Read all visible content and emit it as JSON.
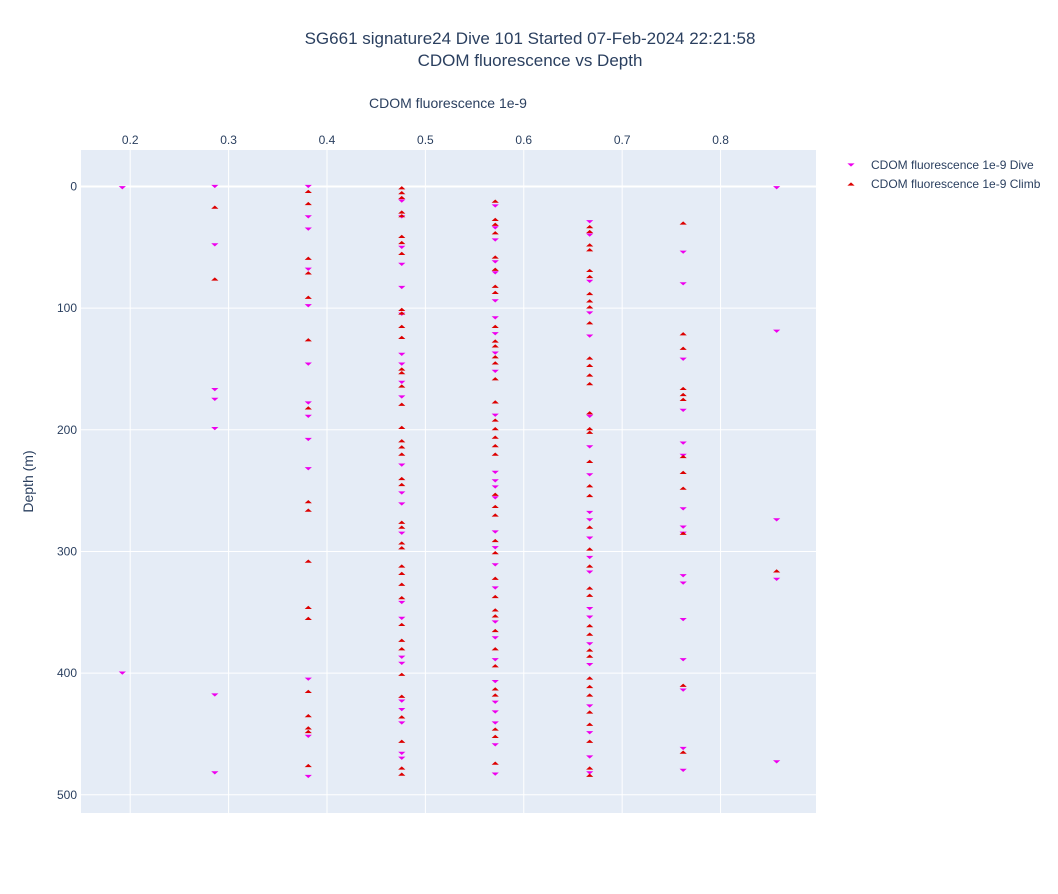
{
  "chart_data": {
    "type": "scatter",
    "title": "SG661 signature24 Dive 101 Started 07-Feb-2024 22:21:58",
    "subtitle": "CDOM fluorescence vs Depth",
    "xlabel": "CDOM fluorescence 1e-9",
    "ylabel": "Depth (m)",
    "x_axis_position": "top",
    "y_axis_reversed": true,
    "xlim": [
      0.15,
      0.897
    ],
    "ylim": [
      -30,
      515
    ],
    "x_ticks": [
      0.2,
      0.3,
      0.4,
      0.5,
      0.6,
      0.7,
      0.8
    ],
    "x_tick_labels": [
      "0.2",
      "0.3",
      "0.4",
      "0.5",
      "0.6",
      "0.7",
      "0.8"
    ],
    "y_ticks": [
      0,
      100,
      200,
      300,
      400,
      500
    ],
    "y_tick_labels": [
      "0",
      "100",
      "200",
      "300",
      "400",
      "500"
    ],
    "grid": true,
    "legend_position": "top-right",
    "series": [
      {
        "name": "CDOM fluorescence 1e-9 Dive",
        "marker": "triangle-down",
        "color": "#ee00ee",
        "points": [
          [
            0.192,
            1
          ],
          [
            0.192,
            400
          ],
          [
            0.286,
            0
          ],
          [
            0.286,
            48
          ],
          [
            0.286,
            167
          ],
          [
            0.286,
            175
          ],
          [
            0.286,
            199
          ],
          [
            0.286,
            418
          ],
          [
            0.286,
            482
          ],
          [
            0.381,
            0
          ],
          [
            0.381,
            25
          ],
          [
            0.381,
            35
          ],
          [
            0.381,
            68
          ],
          [
            0.381,
            98
          ],
          [
            0.381,
            146
          ],
          [
            0.381,
            178
          ],
          [
            0.381,
            189
          ],
          [
            0.381,
            208
          ],
          [
            0.381,
            232
          ],
          [
            0.381,
            405
          ],
          [
            0.381,
            452
          ],
          [
            0.381,
            485
          ],
          [
            0.476,
            12
          ],
          [
            0.476,
            25
          ],
          [
            0.476,
            50
          ],
          [
            0.476,
            64
          ],
          [
            0.476,
            83
          ],
          [
            0.476,
            105
          ],
          [
            0.476,
            138
          ],
          [
            0.476,
            146
          ],
          [
            0.476,
            161
          ],
          [
            0.476,
            173
          ],
          [
            0.476,
            229
          ],
          [
            0.476,
            252
          ],
          [
            0.476,
            261
          ],
          [
            0.476,
            285
          ],
          [
            0.476,
            342
          ],
          [
            0.476,
            355
          ],
          [
            0.476,
            387
          ],
          [
            0.476,
            392
          ],
          [
            0.476,
            423
          ],
          [
            0.476,
            430
          ],
          [
            0.476,
            441
          ],
          [
            0.476,
            466
          ],
          [
            0.476,
            470
          ],
          [
            0.571,
            16
          ],
          [
            0.571,
            34
          ],
          [
            0.571,
            44
          ],
          [
            0.571,
            62
          ],
          [
            0.571,
            71
          ],
          [
            0.571,
            94
          ],
          [
            0.571,
            108
          ],
          [
            0.571,
            121
          ],
          [
            0.571,
            137
          ],
          [
            0.571,
            152
          ],
          [
            0.571,
            188
          ],
          [
            0.571,
            235
          ],
          [
            0.571,
            242
          ],
          [
            0.571,
            247
          ],
          [
            0.571,
            256
          ],
          [
            0.571,
            284
          ],
          [
            0.571,
            297
          ],
          [
            0.571,
            311
          ],
          [
            0.571,
            330
          ],
          [
            0.571,
            358
          ],
          [
            0.571,
            371
          ],
          [
            0.571,
            389
          ],
          [
            0.571,
            407
          ],
          [
            0.571,
            424
          ],
          [
            0.571,
            432
          ],
          [
            0.571,
            441
          ],
          [
            0.571,
            459
          ],
          [
            0.571,
            483
          ],
          [
            0.667,
            29
          ],
          [
            0.667,
            40
          ],
          [
            0.667,
            78
          ],
          [
            0.667,
            104
          ],
          [
            0.667,
            123
          ],
          [
            0.667,
            189
          ],
          [
            0.667,
            214
          ],
          [
            0.667,
            237
          ],
          [
            0.667,
            268
          ],
          [
            0.667,
            274
          ],
          [
            0.667,
            289
          ],
          [
            0.667,
            305
          ],
          [
            0.667,
            317
          ],
          [
            0.667,
            347
          ],
          [
            0.667,
            354
          ],
          [
            0.667,
            376
          ],
          [
            0.667,
            393
          ],
          [
            0.667,
            427
          ],
          [
            0.667,
            449
          ],
          [
            0.667,
            469
          ],
          [
            0.667,
            482
          ],
          [
            0.762,
            54
          ],
          [
            0.762,
            80
          ],
          [
            0.762,
            142
          ],
          [
            0.762,
            184
          ],
          [
            0.762,
            211
          ],
          [
            0.762,
            221
          ],
          [
            0.762,
            265
          ],
          [
            0.762,
            280
          ],
          [
            0.762,
            285
          ],
          [
            0.762,
            320
          ],
          [
            0.762,
            326
          ],
          [
            0.762,
            356
          ],
          [
            0.762,
            389
          ],
          [
            0.762,
            414
          ],
          [
            0.762,
            462
          ],
          [
            0.762,
            480
          ],
          [
            0.857,
            1
          ],
          [
            0.857,
            119
          ],
          [
            0.857,
            274
          ],
          [
            0.857,
            323
          ],
          [
            0.857,
            473
          ]
        ]
      },
      {
        "name": "CDOM fluorescence 1e-9 Climb",
        "marker": "triangle-up",
        "color": "#dd0000",
        "points": [
          [
            0.286,
            17
          ],
          [
            0.286,
            76
          ],
          [
            0.381,
            4
          ],
          [
            0.381,
            14
          ],
          [
            0.381,
            59
          ],
          [
            0.381,
            71
          ],
          [
            0.381,
            91
          ],
          [
            0.381,
            126
          ],
          [
            0.381,
            182
          ],
          [
            0.381,
            259
          ],
          [
            0.381,
            266
          ],
          [
            0.381,
            308
          ],
          [
            0.381,
            346
          ],
          [
            0.381,
            355
          ],
          [
            0.381,
            415
          ],
          [
            0.381,
            435
          ],
          [
            0.381,
            445
          ],
          [
            0.381,
            448
          ],
          [
            0.381,
            476
          ],
          [
            0.476,
            1
          ],
          [
            0.476,
            5
          ],
          [
            0.476,
            9
          ],
          [
            0.476,
            21
          ],
          [
            0.476,
            24
          ],
          [
            0.476,
            41
          ],
          [
            0.476,
            46
          ],
          [
            0.476,
            55
          ],
          [
            0.476,
            101
          ],
          [
            0.476,
            104
          ],
          [
            0.476,
            115
          ],
          [
            0.476,
            124
          ],
          [
            0.476,
            150
          ],
          [
            0.476,
            153
          ],
          [
            0.476,
            164
          ],
          [
            0.476,
            179
          ],
          [
            0.476,
            198
          ],
          [
            0.476,
            209
          ],
          [
            0.476,
            214
          ],
          [
            0.476,
            220
          ],
          [
            0.476,
            240
          ],
          [
            0.476,
            245
          ],
          [
            0.476,
            276
          ],
          [
            0.476,
            280
          ],
          [
            0.476,
            293
          ],
          [
            0.476,
            297
          ],
          [
            0.476,
            312
          ],
          [
            0.476,
            318
          ],
          [
            0.476,
            327
          ],
          [
            0.476,
            338
          ],
          [
            0.476,
            360
          ],
          [
            0.476,
            373
          ],
          [
            0.476,
            380
          ],
          [
            0.476,
            401
          ],
          [
            0.476,
            419
          ],
          [
            0.476,
            436
          ],
          [
            0.476,
            456
          ],
          [
            0.476,
            478
          ],
          [
            0.476,
            483
          ],
          [
            0.571,
            12
          ],
          [
            0.571,
            27
          ],
          [
            0.571,
            31
          ],
          [
            0.571,
            38
          ],
          [
            0.571,
            58
          ],
          [
            0.571,
            68
          ],
          [
            0.571,
            82
          ],
          [
            0.571,
            87
          ],
          [
            0.571,
            115
          ],
          [
            0.571,
            127
          ],
          [
            0.571,
            131
          ],
          [
            0.571,
            140
          ],
          [
            0.571,
            145
          ],
          [
            0.571,
            158
          ],
          [
            0.571,
            177
          ],
          [
            0.571,
            192
          ],
          [
            0.571,
            199
          ],
          [
            0.571,
            206
          ],
          [
            0.571,
            213
          ],
          [
            0.571,
            220
          ],
          [
            0.571,
            253
          ],
          [
            0.571,
            263
          ],
          [
            0.571,
            270
          ],
          [
            0.571,
            291
          ],
          [
            0.571,
            301
          ],
          [
            0.571,
            322
          ],
          [
            0.571,
            337
          ],
          [
            0.571,
            348
          ],
          [
            0.571,
            353
          ],
          [
            0.571,
            365
          ],
          [
            0.571,
            380
          ],
          [
            0.571,
            394
          ],
          [
            0.571,
            413
          ],
          [
            0.571,
            418
          ],
          [
            0.571,
            446
          ],
          [
            0.571,
            452
          ],
          [
            0.571,
            474
          ],
          [
            0.667,
            33
          ],
          [
            0.667,
            37
          ],
          [
            0.667,
            48
          ],
          [
            0.667,
            52
          ],
          [
            0.667,
            69
          ],
          [
            0.667,
            74
          ],
          [
            0.667,
            88
          ],
          [
            0.667,
            94
          ],
          [
            0.667,
            99
          ],
          [
            0.667,
            112
          ],
          [
            0.667,
            141
          ],
          [
            0.667,
            147
          ],
          [
            0.667,
            155
          ],
          [
            0.667,
            162
          ],
          [
            0.667,
            186
          ],
          [
            0.667,
            199
          ],
          [
            0.667,
            202
          ],
          [
            0.667,
            226
          ],
          [
            0.667,
            246
          ],
          [
            0.667,
            254
          ],
          [
            0.667,
            280
          ],
          [
            0.667,
            298
          ],
          [
            0.667,
            312
          ],
          [
            0.667,
            330
          ],
          [
            0.667,
            336
          ],
          [
            0.667,
            361
          ],
          [
            0.667,
            368
          ],
          [
            0.667,
            381
          ],
          [
            0.667,
            386
          ],
          [
            0.667,
            404
          ],
          [
            0.667,
            411
          ],
          [
            0.667,
            418
          ],
          [
            0.667,
            432
          ],
          [
            0.667,
            442
          ],
          [
            0.667,
            456
          ],
          [
            0.667,
            478
          ],
          [
            0.667,
            484
          ],
          [
            0.762,
            30
          ],
          [
            0.762,
            121
          ],
          [
            0.762,
            133
          ],
          [
            0.762,
            166
          ],
          [
            0.762,
            171
          ],
          [
            0.762,
            175
          ],
          [
            0.762,
            222
          ],
          [
            0.762,
            235
          ],
          [
            0.762,
            248
          ],
          [
            0.762,
            285
          ],
          [
            0.762,
            410
          ],
          [
            0.762,
            465
          ]
        ]
      },
      {
        "name": "",
        "marker": "triangle-up",
        "color": "#dd0000",
        "points": [
          [
            0.857,
            316
          ]
        ]
      }
    ]
  }
}
